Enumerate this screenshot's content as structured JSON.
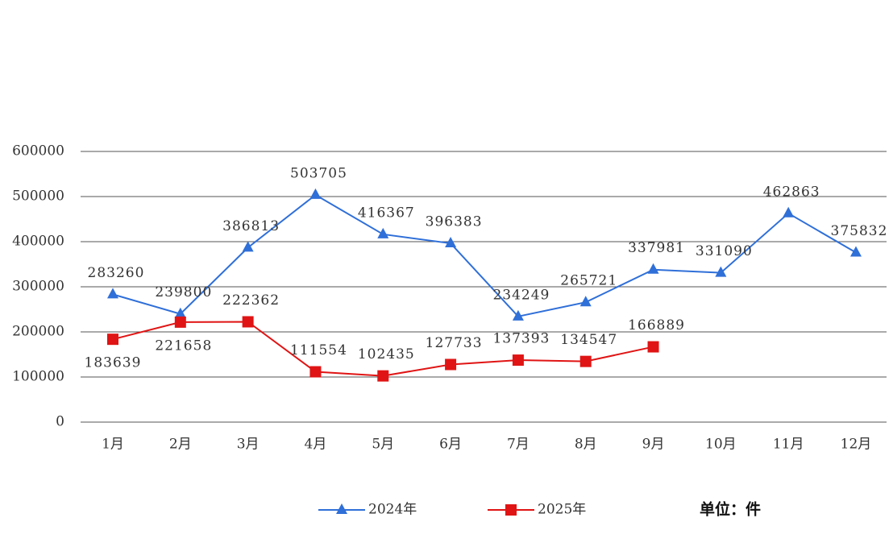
{
  "chart_data": {
    "type": "line",
    "categories": [
      "1月",
      "2月",
      "3月",
      "4月",
      "5月",
      "6月",
      "7月",
      "8月",
      "9月",
      "10月",
      "11月",
      "12月"
    ],
    "series": [
      {
        "name": "2024年",
        "color": "#2f6fd8",
        "values": [
          283260,
          239800,
          386813,
          503705,
          416367,
          396383,
          234249,
          265721,
          337981,
          331090,
          462863,
          375832
        ]
      },
      {
        "name": "2025年",
        "color": "#e01414",
        "values": [
          183639,
          221658,
          222362,
          111554,
          102435,
          127733,
          137393,
          134547,
          166889,
          null,
          null,
          null
        ]
      }
    ],
    "ylim": [
      0,
      600000
    ],
    "yticks": [
      0,
      100000,
      200000,
      300000,
      400000,
      500000,
      600000
    ],
    "grid": true,
    "annotation": "单位：件"
  }
}
